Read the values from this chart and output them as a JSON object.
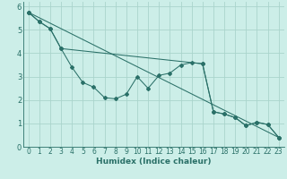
{
  "xlabel": "Humidex (Indice chaleur)",
  "bg_color": "#cceee8",
  "grid_color": "#aad4cc",
  "line_color": "#2a7068",
  "xlim": [
    -0.5,
    23.5
  ],
  "ylim": [
    0,
    6.2
  ],
  "xticks": [
    0,
    1,
    2,
    3,
    4,
    5,
    6,
    7,
    8,
    9,
    10,
    11,
    12,
    13,
    14,
    15,
    16,
    17,
    18,
    19,
    20,
    21,
    22,
    23
  ],
  "yticks": [
    0,
    1,
    2,
    3,
    4,
    5,
    6
  ],
  "line1_x": [
    0,
    1,
    2,
    3,
    4,
    5,
    6,
    7,
    8,
    9,
    10,
    11,
    12,
    13,
    14,
    15,
    16,
    17,
    18,
    19,
    20,
    21,
    22,
    23
  ],
  "line1_y": [
    5.75,
    5.35,
    5.05,
    4.2,
    3.4,
    2.75,
    2.55,
    2.1,
    2.05,
    2.25,
    3.0,
    2.5,
    3.05,
    3.15,
    3.5,
    3.6,
    3.55,
    1.5,
    1.4,
    1.25,
    0.9,
    1.05,
    0.95,
    0.4
  ],
  "line2_x": [
    0,
    1,
    2,
    3,
    16,
    17,
    18,
    19,
    20,
    21,
    22,
    23
  ],
  "line2_y": [
    5.75,
    5.35,
    5.05,
    4.2,
    3.55,
    1.5,
    1.4,
    1.25,
    0.9,
    1.05,
    0.95,
    0.4
  ],
  "line3_x": [
    0,
    23
  ],
  "line3_y": [
    5.75,
    0.4
  ],
  "xlabel_fontsize": 6.5,
  "tick_fontsize": 5.5,
  "ytick_fontsize": 6.0
}
